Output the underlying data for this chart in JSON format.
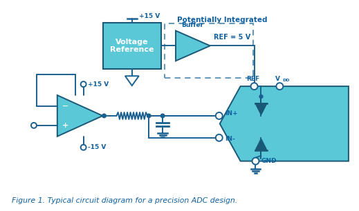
{
  "colors": {
    "cyan_fill": "#5BC8D8",
    "cyan_dark": "#2A8FA0",
    "blue_text": "#1060A0",
    "dashed_box": "#6699BB",
    "background": "#FFFFFF",
    "dark_line": "#1A5878",
    "wire": "#1A6090"
  },
  "title": "Figure 1. Typical circuit diagram for a precision ADC design.",
  "labels": {
    "potentially_integrated": "Potentially Integrated",
    "buffer": "Buffer",
    "voltage_ref": "Voltage\nReference",
    "ref_eq": "REF = 5 V",
    "plus15v_top": "+15 V",
    "plus15v_amp": "+15 V",
    "minus15v_amp": "-15 V",
    "ref_pin": "REF",
    "vdd_pin": "V",
    "vdd_sub": "DD",
    "in_plus": "IN+",
    "in_minus": "IN-",
    "gnd_pin": "GND"
  },
  "layout": {
    "figsize": [
      5.19,
      3.06
    ],
    "dpi": 100,
    "xlim": [
      0,
      519
    ],
    "ylim": [
      0,
      306
    ]
  }
}
